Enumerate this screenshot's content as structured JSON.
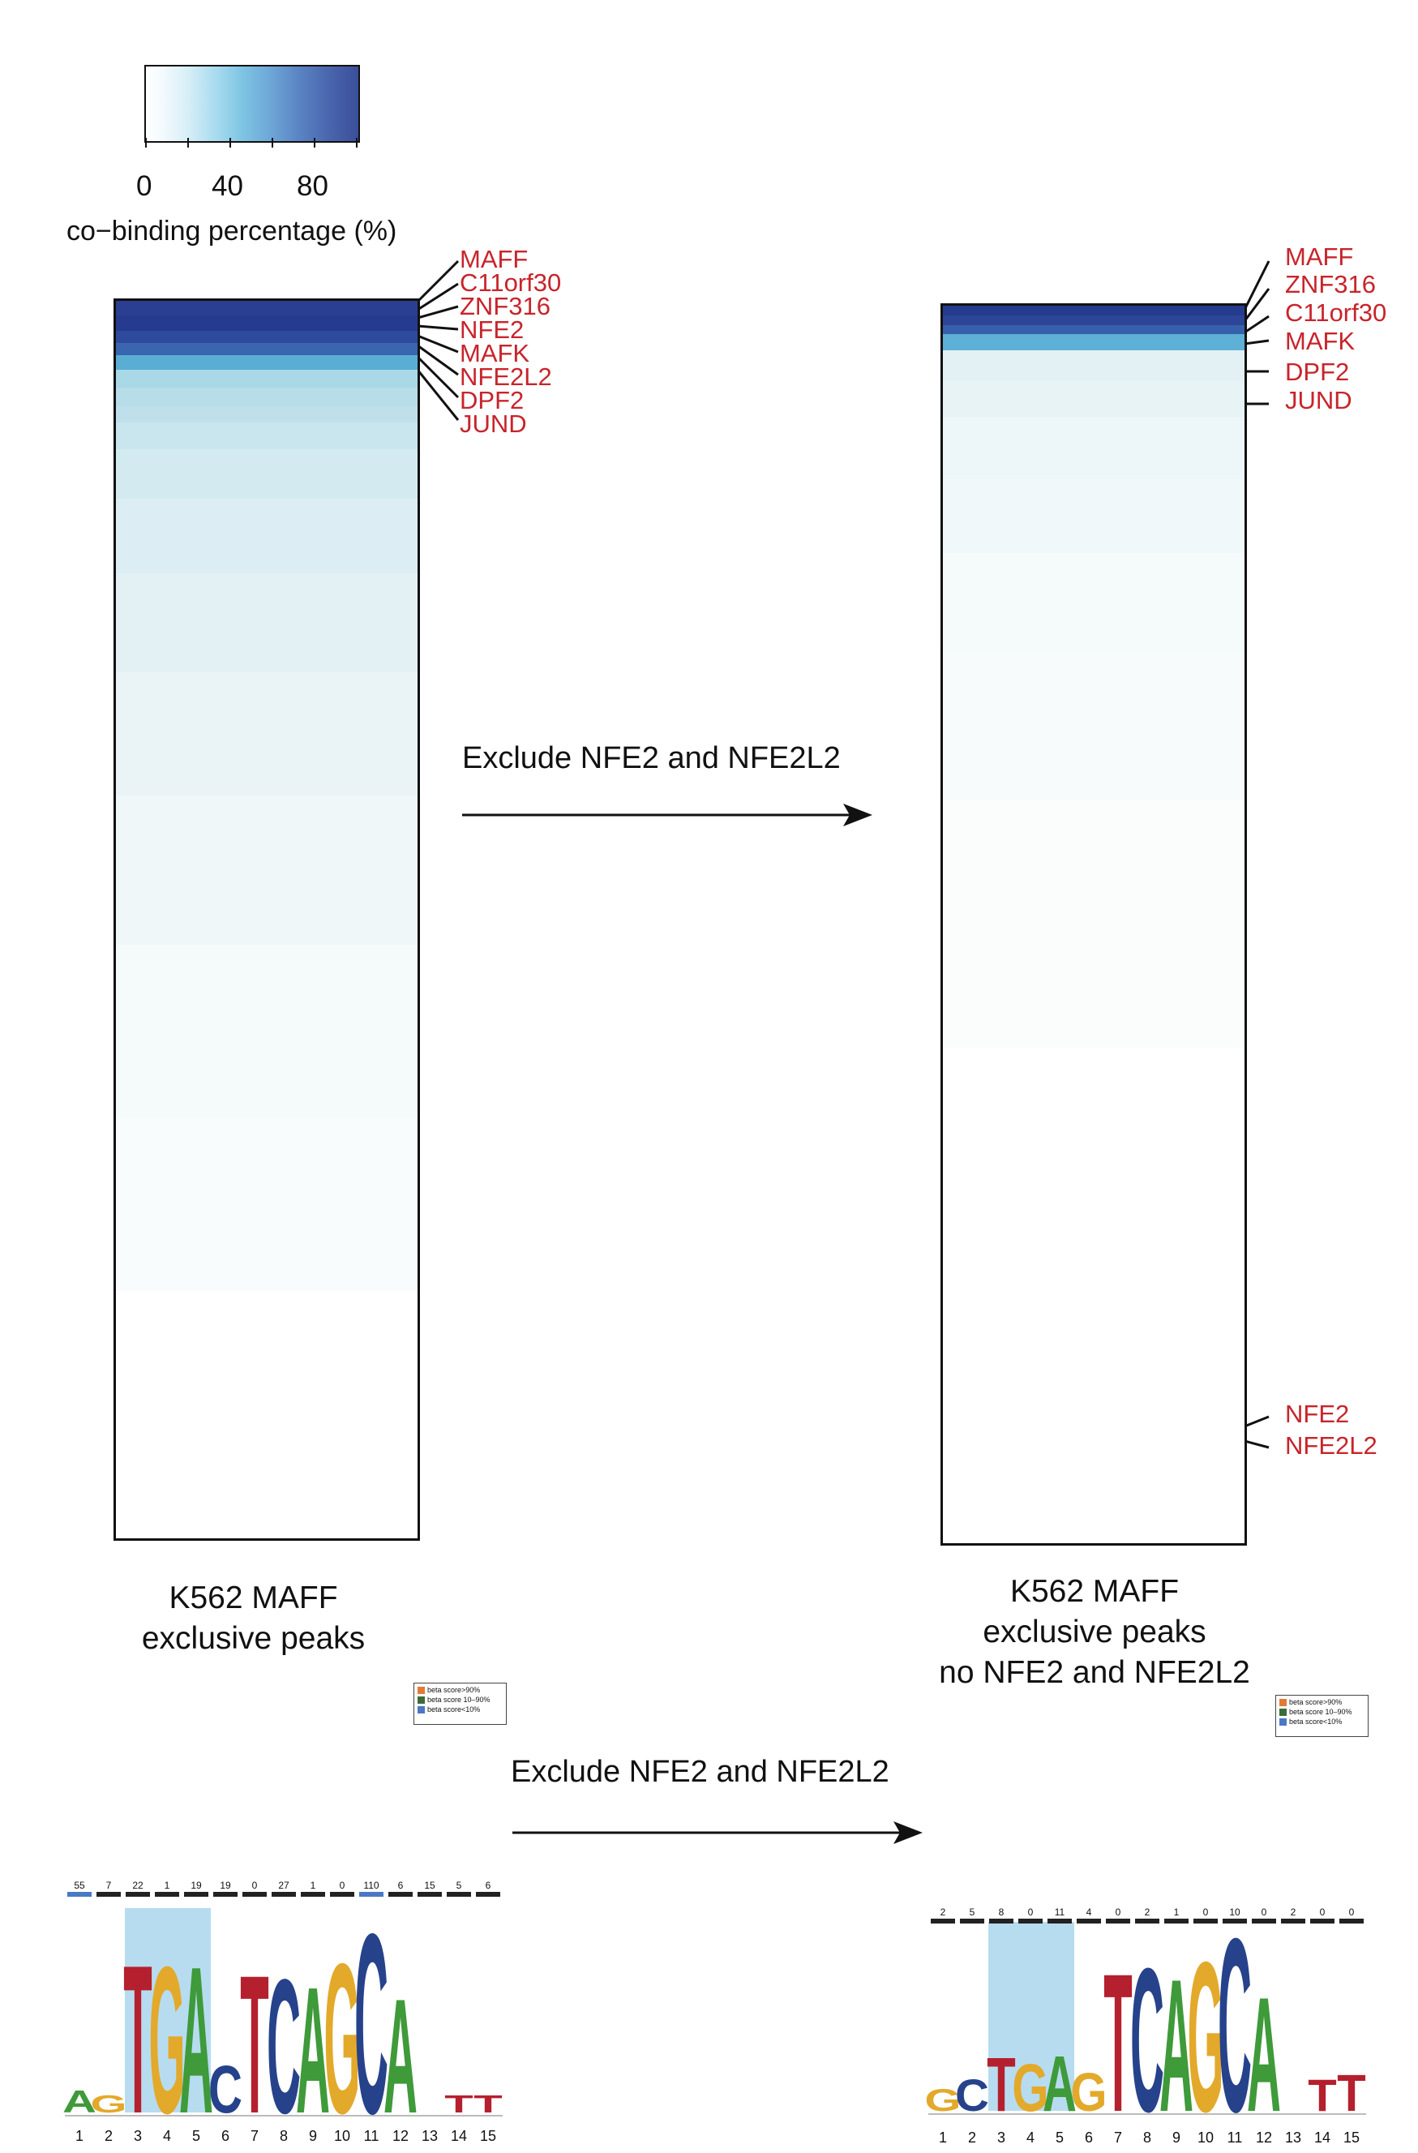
{
  "colorbar": {
    "ticks": [
      "0",
      "40",
      "80"
    ],
    "title": "co−binding percentage (%)",
    "min": 0,
    "max": 100,
    "colors": [
      "#ffffff",
      "#d8eef6",
      "#7fc3e0",
      "#6aa0d2",
      "#4f6ab0",
      "#3a4d98"
    ]
  },
  "left_heatmap": {
    "labels": [
      "MAFF",
      "C11orf30",
      "ZNF316",
      "NFE2",
      "MAFK",
      "NFE2L2",
      "DPF2",
      "JUND"
    ],
    "caption_lines": [
      "K562 MAFF",
      "exclusive peaks"
    ]
  },
  "right_heatmap": {
    "top_labels": [
      "MAFF",
      "ZNF316",
      "C11orf30",
      "MAFK",
      "DPF2",
      "JUND"
    ],
    "bottom_labels": [
      "NFE2",
      "NFE2L2"
    ],
    "caption_lines": [
      "K562 MAFF",
      "exclusive peaks",
      "no NFE2 and NFE2L2"
    ]
  },
  "arrows": {
    "top_label": "Exclude NFE2 and NFE2L2",
    "bottom_label": "Exclude NFE2 and NFE2L2"
  },
  "legend": {
    "items": [
      {
        "label": "beta score>90%",
        "color": "#e07b39"
      },
      {
        "label": "beta score 10–90%",
        "color": "#3b6b3a"
      },
      {
        "label": "beta score<10%",
        "color": "#4a78c4"
      }
    ]
  },
  "motif_left": {
    "positions": [
      "1",
      "2",
      "3",
      "4",
      "5",
      "6",
      "7",
      "8",
      "9",
      "10",
      "11",
      "12",
      "13",
      "14",
      "15"
    ],
    "counts": [
      "55",
      "7",
      "22",
      "1",
      "19",
      "19",
      "0",
      "27",
      "1",
      "0",
      "110",
      "6",
      "15",
      "5",
      "6"
    ],
    "consensus": [
      "A",
      "G",
      "T",
      "G",
      "A",
      "C",
      "T",
      "C",
      "A",
      "G",
      "C",
      "A",
      "",
      "T",
      "T"
    ]
  },
  "motif_right": {
    "positions": [
      "1",
      "2",
      "3",
      "4",
      "5",
      "6",
      "7",
      "8",
      "9",
      "10",
      "11",
      "12",
      "13",
      "14",
      "15"
    ],
    "counts": [
      "2",
      "5",
      "8",
      "0",
      "11",
      "4",
      "0",
      "2",
      "1",
      "0",
      "10",
      "0",
      "2",
      "0",
      "0"
    ],
    "consensus": [
      "G",
      "C",
      "T",
      "G",
      "A",
      "G",
      "T",
      "C",
      "A",
      "G",
      "C",
      "A",
      "",
      "T",
      "T"
    ]
  },
  "base_colors": {
    "A": "#3f9a3a",
    "C": "#26428b",
    "G": "#e3a92b",
    "T": "#b5202e"
  }
}
